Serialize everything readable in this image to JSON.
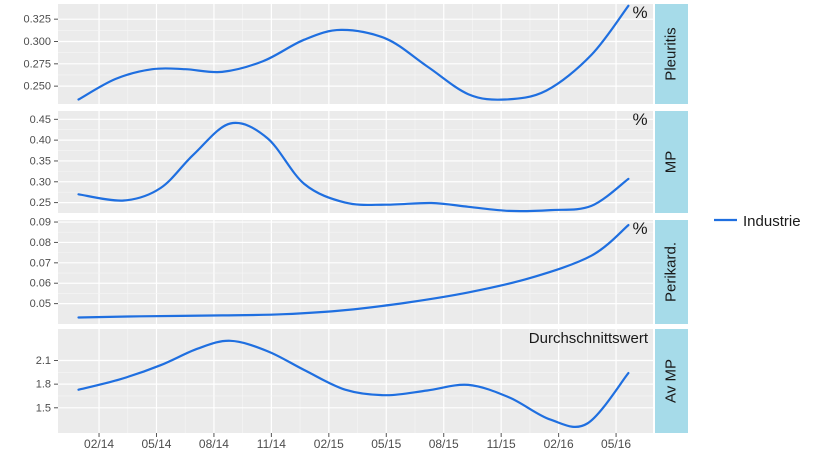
{
  "chart_data": {
    "type": "line",
    "x": [
      "02/14",
      "05/14",
      "08/14",
      "11/14",
      "02/15",
      "05/15",
      "08/15",
      "11/15",
      "02/16",
      "05/16"
    ],
    "legend": {
      "position": "right",
      "entries": [
        "Industrie"
      ]
    },
    "series_color": "#1f6fe0",
    "strip_color": "#a6dbe9",
    "panel_background": "#ebebeb",
    "grid": true,
    "panels": [
      {
        "strip_label": "Pleuritis",
        "annotation": "%",
        "ylim": [
          0.23,
          0.342
        ],
        "yticks": [
          0.25,
          0.275,
          0.3,
          0.325
        ],
        "ytick_labels": [
          "0.250",
          "0.275",
          "0.300",
          "0.325"
        ],
        "series": [
          {
            "name": "Industrie",
            "points": [
              [
                0.5,
                0.235
              ],
              [
                1.4,
                0.258
              ],
              [
                2.3,
                0.269
              ],
              [
                3.1,
                0.269
              ],
              [
                4.0,
                0.266
              ],
              [
                5.0,
                0.278
              ],
              [
                6.0,
                0.302
              ],
              [
                6.9,
                0.313
              ],
              [
                8.0,
                0.303
              ],
              [
                9.0,
                0.272
              ],
              [
                10.0,
                0.241
              ],
              [
                10.9,
                0.235
              ],
              [
                11.9,
                0.245
              ],
              [
                13.0,
                0.285
              ],
              [
                13.9,
                0.34
              ]
            ]
          }
        ]
      },
      {
        "strip_label": "MP",
        "annotation": "%",
        "ylim": [
          0.225,
          0.47
        ],
        "yticks": [
          0.25,
          0.3,
          0.35,
          0.4,
          0.45
        ],
        "ytick_labels": [
          "0.25",
          "0.30",
          "0.35",
          "0.40",
          "0.45"
        ],
        "series": [
          {
            "name": "Industrie",
            "points": [
              [
                0.5,
                0.27
              ],
              [
                1.6,
                0.255
              ],
              [
                2.5,
                0.285
              ],
              [
                3.3,
                0.365
              ],
              [
                4.2,
                0.44
              ],
              [
                5.1,
                0.405
              ],
              [
                6.0,
                0.295
              ],
              [
                7.0,
                0.25
              ],
              [
                8.0,
                0.245
              ],
              [
                9.1,
                0.249
              ],
              [
                10.0,
                0.24
              ],
              [
                11.0,
                0.23
              ],
              [
                12.0,
                0.232
              ],
              [
                13.0,
                0.242
              ],
              [
                13.9,
                0.307
              ]
            ]
          }
        ]
      },
      {
        "strip_label": "Perikard.",
        "annotation": "%",
        "ylim": [
          0.04,
          0.091
        ],
        "yticks": [
          0.05,
          0.06,
          0.07,
          0.08,
          0.09
        ],
        "ytick_labels": [
          "0.05",
          "0.06",
          "0.07",
          "0.08",
          "0.09"
        ],
        "series": [
          {
            "name": "Industrie",
            "points": [
              [
                0.5,
                0.0432
              ],
              [
                2.0,
                0.0438
              ],
              [
                4.0,
                0.0442
              ],
              [
                5.5,
                0.0448
              ],
              [
                7.0,
                0.0468
              ],
              [
                8.5,
                0.0505
              ],
              [
                10.0,
                0.0555
              ],
              [
                11.5,
                0.0625
              ],
              [
                13.0,
                0.0735
              ],
              [
                13.9,
                0.0885
              ]
            ]
          }
        ]
      },
      {
        "strip_label": "Av MP",
        "annotation": "Durchschnittswert",
        "ylim": [
          1.18,
          2.5
        ],
        "yticks": [
          1.5,
          1.8,
          2.1
        ],
        "ytick_labels": [
          "1.5",
          "1.8",
          "2.1"
        ],
        "series": [
          {
            "name": "Industrie",
            "points": [
              [
                0.5,
                1.73
              ],
              [
                1.5,
                1.86
              ],
              [
                2.5,
                2.04
              ],
              [
                3.4,
                2.25
              ],
              [
                4.2,
                2.35
              ],
              [
                5.1,
                2.22
              ],
              [
                6.0,
                1.98
              ],
              [
                7.0,
                1.73
              ],
              [
                8.0,
                1.66
              ],
              [
                9.0,
                1.72
              ],
              [
                10.0,
                1.79
              ],
              [
                11.0,
                1.63
              ],
              [
                12.0,
                1.35
              ],
              [
                12.9,
                1.3
              ],
              [
                13.9,
                1.94
              ]
            ]
          }
        ]
      }
    ]
  }
}
